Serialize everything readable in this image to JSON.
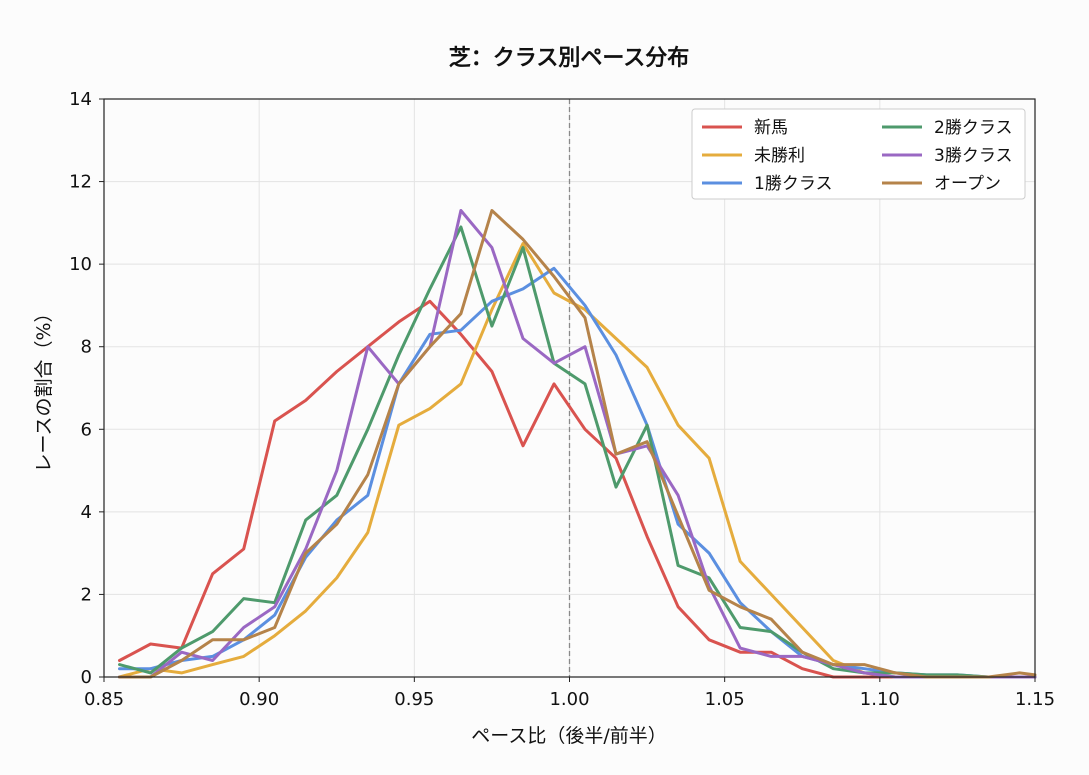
{
  "chart_data": {
    "type": "line",
    "title": "芝：クラス別ペース分布",
    "xlabel": "ペース比（後半/前半）",
    "ylabel": "レースの割合（%）",
    "xlim": [
      0.85,
      1.15
    ],
    "ylim": [
      0,
      14
    ],
    "xticks": [
      "0.85",
      "0.90",
      "0.95",
      "1.00",
      "1.05",
      "1.10",
      "1.15"
    ],
    "yticks": [
      "0",
      "2",
      "4",
      "6",
      "8",
      "10",
      "12",
      "14"
    ],
    "grid": true,
    "legend_position": "top-right",
    "reference_line_x": 1.0,
    "x": [
      0.855,
      0.865,
      0.875,
      0.885,
      0.895,
      0.905,
      0.915,
      0.925,
      0.935,
      0.945,
      0.955,
      0.965,
      0.975,
      0.985,
      0.995,
      1.005,
      1.015,
      1.025,
      1.035,
      1.045,
      1.055,
      1.065,
      1.075,
      1.085,
      1.095,
      1.105,
      1.115,
      1.125,
      1.135,
      1.145,
      1.15
    ],
    "series": [
      {
        "name": "新馬",
        "color": "#d9534f",
        "values": [
          0.4,
          0.8,
          0.7,
          2.5,
          3.1,
          6.2,
          6.7,
          7.4,
          8.0,
          8.6,
          9.1,
          8.3,
          7.4,
          5.6,
          7.1,
          6.0,
          5.3,
          3.4,
          1.7,
          0.9,
          0.6,
          0.6,
          0.2,
          0.0,
          0.0,
          0.0,
          0.0,
          0.0,
          0.0,
          0.0,
          0.0
        ]
      },
      {
        "name": "未勝利",
        "color": "#e5ac3d",
        "values": [
          0.0,
          0.2,
          0.1,
          0.3,
          0.5,
          1.0,
          1.6,
          2.4,
          3.5,
          6.1,
          6.5,
          7.1,
          8.9,
          10.5,
          9.3,
          8.9,
          8.2,
          7.5,
          6.1,
          5.3,
          2.8,
          2.0,
          1.2,
          0.4,
          0.1,
          0.0,
          0.0,
          0.0,
          0.0,
          0.0,
          0.0
        ]
      },
      {
        "name": "1勝クラス",
        "color": "#5b8fe0",
        "values": [
          0.2,
          0.2,
          0.4,
          0.5,
          0.9,
          1.5,
          2.9,
          3.8,
          4.4,
          7.1,
          8.3,
          8.4,
          9.1,
          9.4,
          9.9,
          9.0,
          7.8,
          6.1,
          3.7,
          3.0,
          1.8,
          1.1,
          0.5,
          0.3,
          0.2,
          0.1,
          0.05,
          0.05,
          0.0,
          0.0,
          0.0
        ]
      },
      {
        "name": "2勝クラス",
        "color": "#4e9a6c",
        "values": [
          0.3,
          0.1,
          0.7,
          1.1,
          1.9,
          1.8,
          3.8,
          4.4,
          6.0,
          7.8,
          9.4,
          10.9,
          8.5,
          10.4,
          7.6,
          7.1,
          4.6,
          6.1,
          2.7,
          2.4,
          1.2,
          1.1,
          0.6,
          0.2,
          0.1,
          0.1,
          0.05,
          0.05,
          0.0,
          0.0,
          0.0
        ]
      },
      {
        "name": "3勝クラス",
        "color": "#9a68c3",
        "values": [
          0.0,
          0.0,
          0.6,
          0.4,
          1.2,
          1.7,
          3.1,
          5.0,
          8.0,
          7.1,
          8.0,
          11.3,
          10.4,
          8.2,
          7.6,
          8.0,
          5.4,
          5.6,
          4.4,
          2.2,
          0.7,
          0.5,
          0.5,
          0.3,
          0.1,
          0.0,
          0.0,
          0.0,
          0.0,
          0.0,
          0.0
        ]
      },
      {
        "name": "オープン",
        "color": "#b5834a",
        "values": [
          0.0,
          0.0,
          0.4,
          0.9,
          0.9,
          1.2,
          3.0,
          3.7,
          4.9,
          7.1,
          8.0,
          8.8,
          11.3,
          10.6,
          9.7,
          8.7,
          5.4,
          5.7,
          3.9,
          2.1,
          1.7,
          1.4,
          0.6,
          0.3,
          0.3,
          0.1,
          0.0,
          0.0,
          0.0,
          0.1,
          0.05
        ]
      }
    ]
  }
}
